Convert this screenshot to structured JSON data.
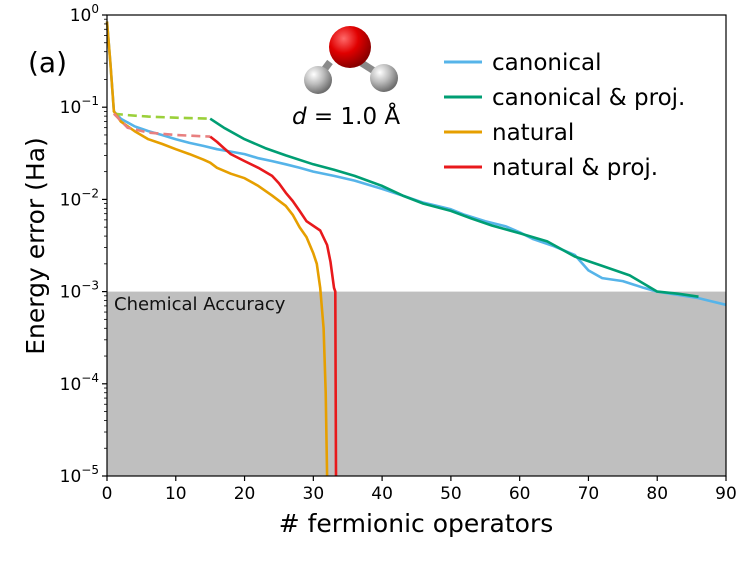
{
  "chart_data": {
    "type": "line",
    "panel_label": "(a)",
    "xlabel": "# fermionic operators",
    "ylabel": "Energy error (Ha)",
    "xlim": [
      0,
      90
    ],
    "ylim": [
      1e-05,
      1
    ],
    "yscale": "log",
    "x_ticks": [
      0,
      10,
      20,
      30,
      40,
      50,
      60,
      70,
      80,
      90
    ],
    "y_ticks": [
      {
        "value": 1e-05,
        "base": "10",
        "exp": "−5"
      },
      {
        "value": 0.0001,
        "base": "10",
        "exp": "−4"
      },
      {
        "value": 0.001,
        "base": "10",
        "exp": "−3"
      },
      {
        "value": 0.01,
        "base": "10",
        "exp": "−2"
      },
      {
        "value": 0.1,
        "base": "10",
        "exp": "−1"
      },
      {
        "value": 1,
        "base": "10",
        "exp": "0"
      }
    ],
    "shaded_region": {
      "label": "Chemical Accuracy",
      "y_max": 0.001,
      "color": "#bfbfbf"
    },
    "annotation": {
      "italic": "d",
      "rest": " = 1.0 Å"
    },
    "molecule": "water-molecule",
    "series": [
      {
        "name": "canonical",
        "color": "#56b4e9",
        "in_legend": true,
        "segments": [
          {
            "style": "solid",
            "points": [
              [
                0,
                0.85
              ],
              [
                0.5,
                0.3
              ],
              [
                1,
                0.09
              ],
              [
                2,
                0.075
              ],
              [
                4,
                0.062
              ],
              [
                6,
                0.055
              ],
              [
                8,
                0.05
              ],
              [
                10,
                0.045
              ],
              [
                12,
                0.041
              ],
              [
                14,
                0.038
              ],
              [
                16,
                0.035
              ],
              [
                18,
                0.033
              ],
              [
                20,
                0.031
              ],
              [
                22,
                0.028
              ],
              [
                24,
                0.026
              ],
              [
                26,
                0.024
              ],
              [
                28,
                0.022
              ],
              [
                30,
                0.02
              ],
              [
                33,
                0.018
              ],
              [
                36,
                0.016
              ],
              [
                40,
                0.013
              ],
              [
                43,
                0.011
              ],
              [
                46,
                0.0092
              ],
              [
                48,
                0.0085
              ],
              [
                50,
                0.0078
              ],
              [
                52,
                0.0068
              ],
              [
                55,
                0.0058
              ],
              [
                58,
                0.0051
              ],
              [
                60,
                0.0044
              ],
              [
                62,
                0.0037
              ],
              [
                65,
                0.0031
              ],
              [
                68,
                0.0025
              ],
              [
                70,
                0.0017
              ],
              [
                72,
                0.0014
              ],
              [
                75,
                0.0013
              ],
              [
                78,
                0.0011
              ],
              [
                80,
                0.001
              ],
              [
                83,
                0.00092
              ],
              [
                86,
                0.00085
              ],
              [
                88,
                0.00078
              ],
              [
                90,
                0.00072
              ]
            ]
          }
        ]
      },
      {
        "name": "canonical & proj.",
        "color": "#009e73",
        "in_legend": true,
        "segments": [
          {
            "style": "dashed",
            "color": "#9bd03a",
            "points": [
              [
                1,
                0.085
              ],
              [
                3,
                0.082
              ],
              [
                6,
                0.079
              ],
              [
                10,
                0.077
              ],
              [
                15,
                0.075
              ]
            ]
          },
          {
            "style": "solid",
            "points": [
              [
                15,
                0.075
              ],
              [
                17,
                0.06
              ],
              [
                20,
                0.045
              ],
              [
                23,
                0.036
              ],
              [
                26,
                0.03
              ],
              [
                30,
                0.024
              ],
              [
                33,
                0.021
              ],
              [
                36,
                0.018
              ],
              [
                40,
                0.014
              ],
              [
                43,
                0.011
              ],
              [
                46,
                0.009
              ],
              [
                50,
                0.0075
              ],
              [
                53,
                0.0062
              ],
              [
                56,
                0.0052
              ],
              [
                60,
                0.0043
              ],
              [
                64,
                0.0035
              ],
              [
                68,
                0.0024
              ],
              [
                72,
                0.0019
              ],
              [
                76,
                0.0015
              ],
              [
                80,
                0.001
              ],
              [
                83,
                0.00095
              ],
              [
                86,
                0.00088
              ]
            ]
          }
        ]
      },
      {
        "name": "natural",
        "color": "#e69f00",
        "in_legend": true,
        "segments": [
          {
            "style": "solid",
            "points": [
              [
                0,
                0.85
              ],
              [
                0.5,
                0.3
              ],
              [
                1,
                0.09
              ],
              [
                2,
                0.07
              ],
              [
                4,
                0.055
              ],
              [
                6,
                0.045
              ],
              [
                8,
                0.04
              ],
              [
                10,
                0.035
              ],
              [
                12,
                0.031
              ],
              [
                14,
                0.027
              ],
              [
                15,
                0.025
              ],
              [
                16,
                0.022
              ],
              [
                18,
                0.019
              ],
              [
                20,
                0.017
              ],
              [
                22,
                0.014
              ],
              [
                24,
                0.011
              ],
              [
                26,
                0.0085
              ],
              [
                27,
                0.0068
              ],
              [
                28,
                0.005
              ],
              [
                29,
                0.0039
              ],
              [
                30,
                0.0026
              ],
              [
                30.5,
                0.002
              ],
              [
                31,
                0.0011
              ],
              [
                31.5,
                0.0004
              ],
              [
                31.8,
                8e-05
              ],
              [
                32,
                1e-05
              ]
            ]
          }
        ]
      },
      {
        "name": "natural & proj.",
        "color": "#e8191c",
        "in_legend": true,
        "segments": [
          {
            "style": "dashed",
            "color": "#e88080",
            "points": [
              [
                1,
                0.085
              ],
              [
                3,
                0.06
              ],
              [
                6,
                0.053
              ],
              [
                10,
                0.05
              ],
              [
                15,
                0.048
              ]
            ]
          },
          {
            "style": "solid",
            "points": [
              [
                15,
                0.048
              ],
              [
                16,
                0.042
              ],
              [
                17,
                0.036
              ],
              [
                18,
                0.031
              ],
              [
                20,
                0.026
              ],
              [
                22,
                0.022
              ],
              [
                24,
                0.018
              ],
              [
                25,
                0.015
              ],
              [
                26,
                0.0118
              ],
              [
                27,
                0.0096
              ],
              [
                28,
                0.0075
              ],
              [
                29,
                0.0058
              ],
              [
                31,
                0.0046
              ],
              [
                32,
                0.0032
              ],
              [
                32.5,
                0.0021
              ],
              [
                33,
                0.0011
              ],
              [
                33.2,
                0.001
              ],
              [
                33.3,
                1e-05
              ]
            ]
          }
        ]
      }
    ]
  }
}
